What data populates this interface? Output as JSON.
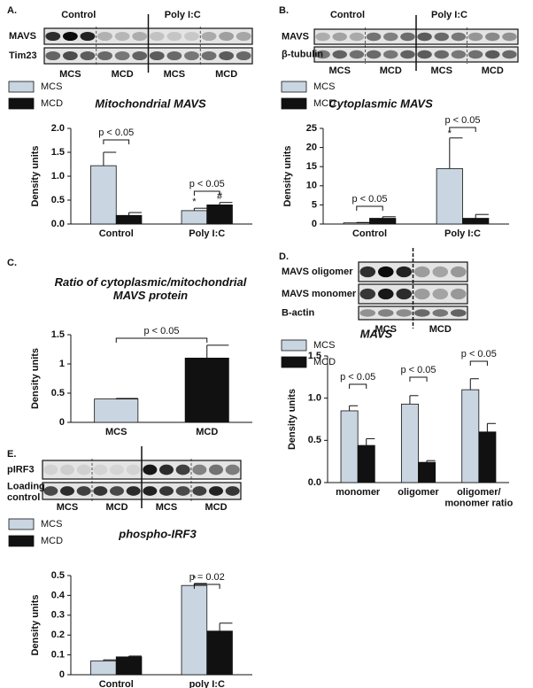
{
  "blots": [
    {
      "panel": "A.",
      "groups": [
        "Control",
        "Poly I:C"
      ],
      "rows": [
        "MAVS",
        "Tim23"
      ],
      "lanes": [
        "MCS",
        "MCD",
        "MCS",
        "MCD"
      ]
    },
    {
      "panel": "B.",
      "groups": [
        "Control",
        "Poly I:C"
      ],
      "rows": [
        "MAVS",
        "β-tubulin"
      ],
      "lanes": [
        "MCS",
        "MCD",
        "MCS",
        "MCD"
      ]
    },
    {
      "panel": "D.",
      "rows": [
        "MAVS oligomer",
        "MAVS monomer",
        "B-actin"
      ],
      "lanes": [
        "MCS",
        "MCD"
      ]
    },
    {
      "panel": "E.",
      "rows": [
        "pIRF3",
        "Loading\ncontrol"
      ],
      "lanes": [
        "MCS",
        "MCD",
        "MCS",
        "MCD"
      ]
    }
  ],
  "chart_data": [
    {
      "type": "bar",
      "title": "Mitochondrial MAVS",
      "ylabel": "Density units",
      "categories": [
        "Control",
        "Poly I:C"
      ],
      "series": [
        {
          "name": "MCS",
          "color": "#c9d5e1",
          "values": [
            1.22,
            0.28
          ],
          "errors": [
            0.28,
            0.05
          ]
        },
        {
          "name": "MCD",
          "color": "#111111",
          "values": [
            0.18,
            0.4
          ],
          "errors": [
            0.06,
            0.05
          ]
        }
      ],
      "ylim": [
        0,
        2
      ],
      "yticks": [
        {
          "value": 0,
          "label": "0.0"
        },
        {
          "value": 0.5,
          "label": "0.5"
        },
        {
          "value": 1,
          "label": "1.0"
        },
        {
          "value": 1.5,
          "label": "1.5"
        },
        {
          "value": 2,
          "label": "2.0"
        }
      ],
      "annotations": [
        {
          "text": "p < 0.05"
        },
        {
          "text": "p < 0.05"
        },
        {
          "text": "*"
        },
        {
          "text": "#"
        }
      ]
    },
    {
      "type": "bar",
      "title": "Cytoplasmic MAVS",
      "ylabel": "Density units",
      "categories": [
        "Control",
        "Poly I:C"
      ],
      "series": [
        {
          "name": "MCS",
          "color": "#c9d5e1",
          "values": [
            0.3,
            14.5
          ],
          "errors": [
            0.1,
            8
          ]
        },
        {
          "name": "MCD",
          "color": "#111111",
          "values": [
            1.5,
            1.5
          ],
          "errors": [
            0.4,
            1
          ]
        }
      ],
      "ylim": [
        0,
        25
      ],
      "yticks": [
        0,
        5,
        10,
        15,
        20,
        25
      ],
      "annotations": [
        {
          "text": "p < 0.05"
        },
        {
          "text": "p < 0.05"
        },
        {
          "text": "*"
        }
      ]
    },
    {
      "type": "bar",
      "panel": "C.",
      "title": "Ratio of cytoplasmic/mitochondrial\nMAVS protein",
      "ylabel": "Density units",
      "categories": [
        "MCS",
        "MCD"
      ],
      "values": [
        0.4,
        1.1
      ],
      "errors": [
        0.01,
        0.22
      ],
      "colors": [
        "#c9d5e1",
        "#111111"
      ],
      "ylim": [
        0,
        1.5
      ],
      "yticks": [
        0,
        0.5,
        1,
        1.5
      ],
      "annotations": [
        {
          "text": "p < 0.05"
        }
      ]
    },
    {
      "type": "bar",
      "title": "MAVS",
      "ylabel": "Density units",
      "categories": [
        "monomer",
        "oligomer",
        "oligomer/\nmonomer ratio"
      ],
      "series": [
        {
          "name": "MCS",
          "color": "#c9d5e1",
          "values": [
            0.85,
            0.93,
            1.1
          ],
          "errors": [
            0.06,
            0.1,
            0.13
          ]
        },
        {
          "name": "MCD",
          "color": "#111111",
          "values": [
            0.44,
            0.24,
            0.6
          ],
          "errors": [
            0.08,
            0.02,
            0.1
          ]
        }
      ],
      "ylim": [
        0,
        1.5
      ],
      "yticks": [
        {
          "value": 0,
          "label": "0.0"
        },
        {
          "value": 0.5,
          "label": "0.5"
        },
        {
          "value": 1,
          "label": "1.0"
        },
        {
          "value": 1.5,
          "label": "1.5"
        }
      ],
      "annotations": [
        {
          "text": "p < 0.05"
        },
        {
          "text": "p < 0.05"
        },
        {
          "text": "p < 0.05"
        }
      ]
    },
    {
      "type": "bar",
      "title": "phospho-IRF3",
      "ylabel": "Density units",
      "categories": [
        "Control",
        "poly I:C"
      ],
      "series": [
        {
          "name": "MCS",
          "color": "#c9d5e1",
          "values": [
            0.07,
            0.45
          ],
          "errors": [
            0.005,
            0.01
          ]
        },
        {
          "name": "MCD",
          "color": "#111111",
          "values": [
            0.09,
            0.22
          ],
          "errors": [
            0.004,
            0.04
          ]
        }
      ],
      "ylim": [
        0,
        0.5
      ],
      "yticks": [
        0,
        0.1,
        0.2,
        0.3,
        0.4,
        0.5
      ],
      "annotations": [
        {
          "text": "p = 0.02"
        },
        {
          "text": "*"
        }
      ]
    }
  ]
}
